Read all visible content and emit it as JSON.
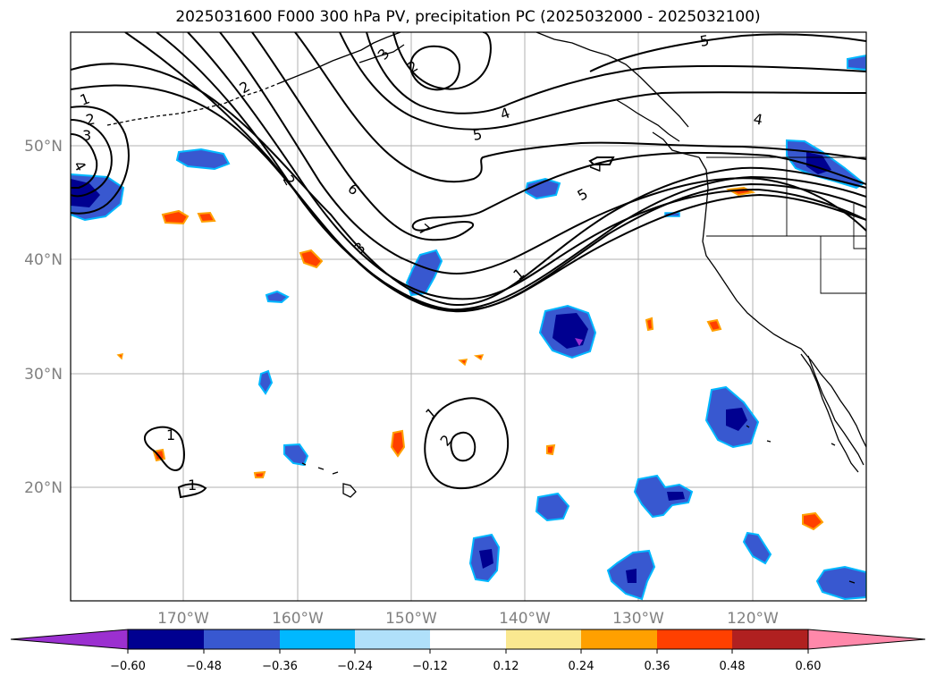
{
  "title": "2025031600 F000 300 hPa PV, precipitation PC (2025032000 - 2025032100)",
  "map": {
    "lon_range": [
      -180,
      -110
    ],
    "lat_range": [
      10,
      60
    ],
    "lat_ticks": [
      {
        "value": 50,
        "label": "50°N"
      },
      {
        "value": 40,
        "label": "40°N"
      },
      {
        "value": 30,
        "label": "30°N"
      },
      {
        "value": 20,
        "label": "20°N"
      }
    ],
    "lon_ticks": [
      {
        "value": -170,
        "label": "170°W"
      },
      {
        "value": -160,
        "label": "160°W"
      },
      {
        "value": -150,
        "label": "150°W"
      },
      {
        "value": -140,
        "label": "140°W"
      },
      {
        "value": -130,
        "label": "130°W"
      },
      {
        "value": -120,
        "label": "120°W"
      }
    ],
    "gridlines": true
  },
  "contour_labels": [
    "1",
    "2",
    "3",
    "4",
    "2",
    "3",
    "2",
    "4",
    "5",
    "5",
    "4",
    "6",
    "7",
    "3",
    "2",
    "7",
    "5",
    "1",
    "1",
    "2",
    "1",
    "1"
  ],
  "colorbar": {
    "colors": [
      "#9b30d0",
      "#000090",
      "#3858d0",
      "#00b8ff",
      "#b0e0fa",
      "#ffffff",
      "#fae890",
      "#ffa000",
      "#ff4000",
      "#b02020",
      "#ff88aa"
    ],
    "tick_labels": [
      "−0.60",
      "−0.48",
      "−0.36",
      "−0.24",
      "−0.12",
      "0.12",
      "0.24",
      "0.36",
      "0.48",
      "0.60"
    ]
  }
}
